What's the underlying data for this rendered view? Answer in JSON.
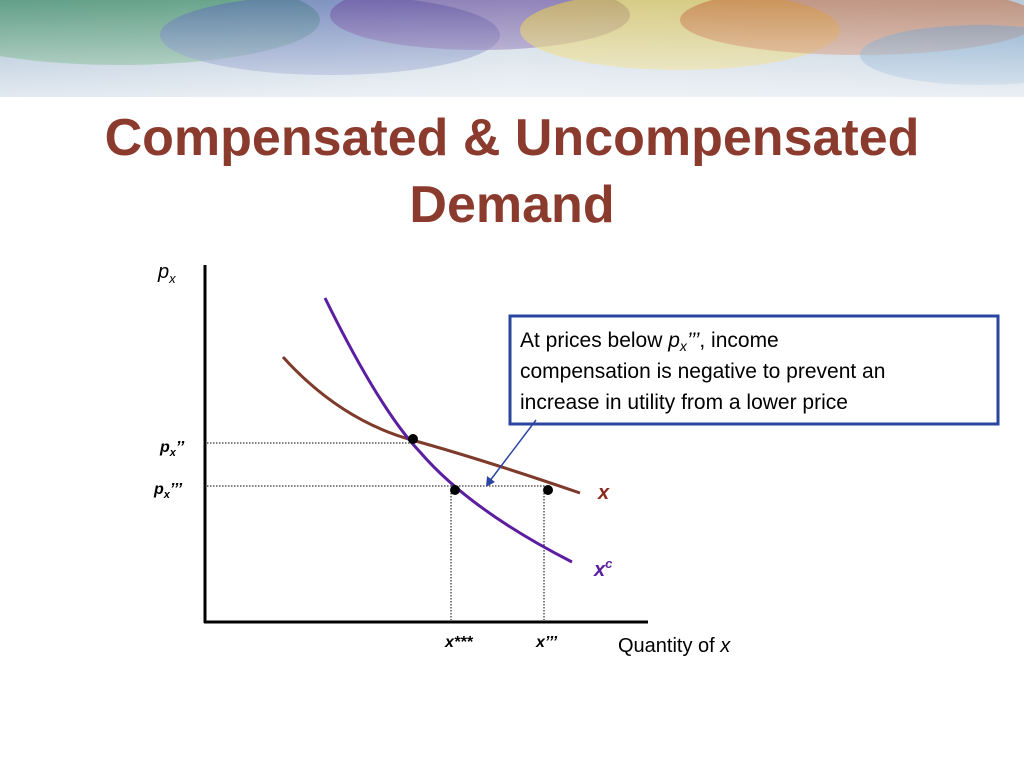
{
  "title": [
    "Compensated & Uncompensated",
    "Demand"
  ],
  "y_axis_label": {
    "base": "p",
    "sub": "x"
  },
  "x_axis_label": {
    "text": "Quantity of ",
    "var": "x"
  },
  "price_labels": [
    {
      "base": "p",
      "sub": "x",
      "mark": "’’"
    },
    {
      "base": "p",
      "sub": "x",
      "mark": "’’’"
    }
  ],
  "quantity_labels": [
    {
      "base": "x",
      "mark": "***"
    },
    {
      "base": "x",
      "mark": "’’’"
    }
  ],
  "curves": [
    {
      "label": "x"
    },
    {
      "label": "x",
      "sup": "c"
    }
  ],
  "callout": {
    "line1": [
      "At prices below ",
      "p",
      "x",
      "’’’",
      ", income"
    ],
    "line2": "compensation is negative to prevent an",
    "line3": "increase in utility from a lower price"
  }
}
